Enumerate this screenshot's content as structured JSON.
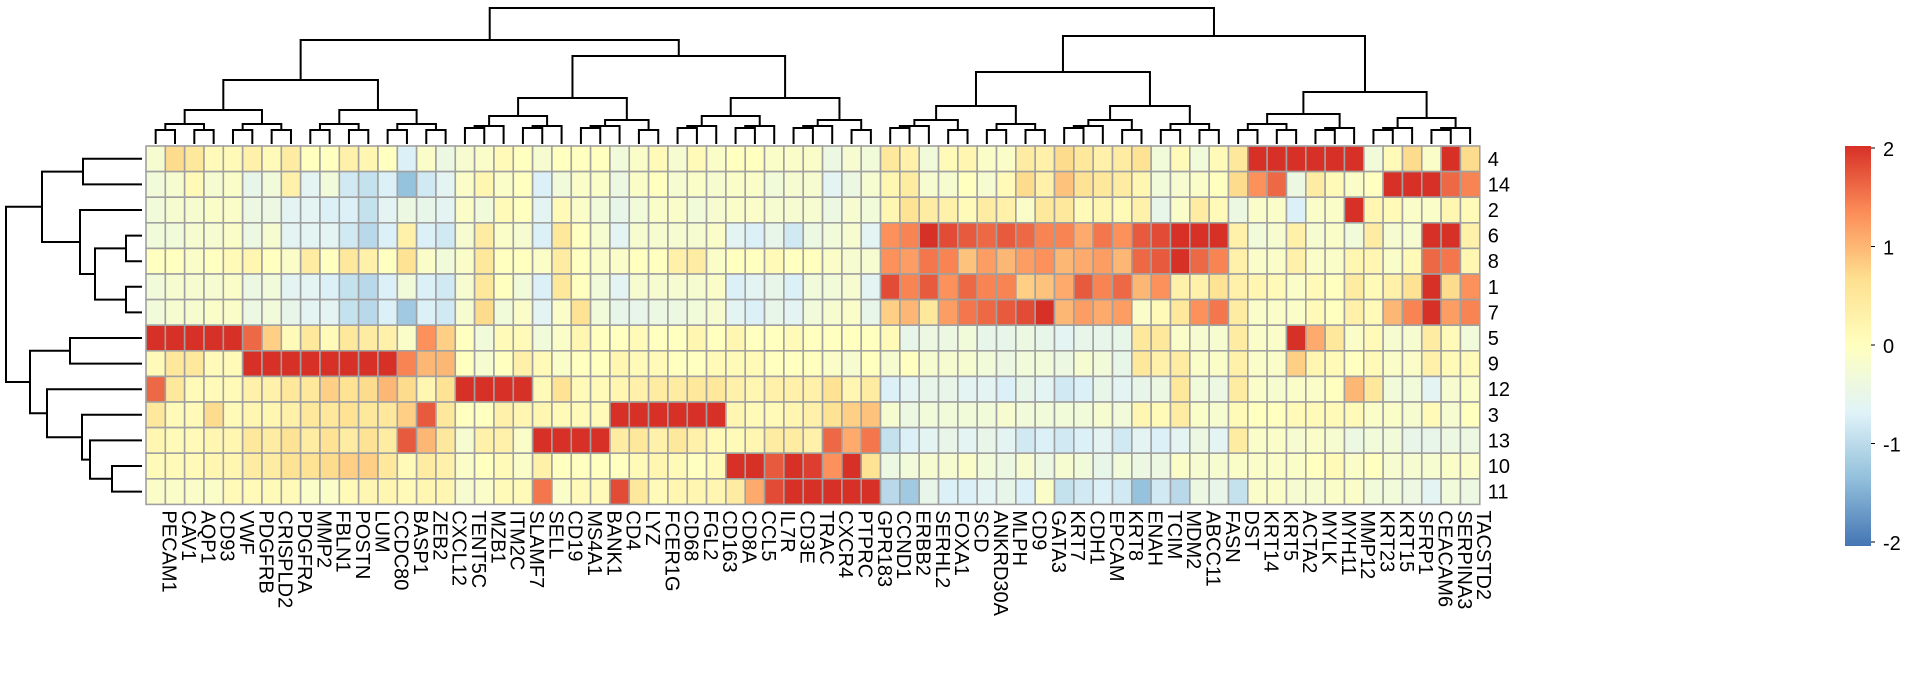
{
  "chart_data": {
    "type": "heatmap",
    "title": "",
    "xlabel": "",
    "ylabel": "",
    "columns": [
      "PECAM1",
      "CAV1",
      "AQP1",
      "CD93",
      "VWF",
      "PDGFRB",
      "CRISPLD2",
      "PDGFRA",
      "MMP2",
      "FBLN1",
      "POSTN",
      "LUM",
      "CCDC80",
      "BASP1",
      "ZEB2",
      "CXCL12",
      "TENT5C",
      "MZB1",
      "ITM2C",
      "SLAMF7",
      "SELL",
      "CD19",
      "MS4A1",
      "BANK1",
      "CD4",
      "LYZ",
      "FCER1G",
      "CD68",
      "FGL2",
      "CD163",
      "CD8A",
      "CCL5",
      "IL7R",
      "CD3E",
      "TRAC",
      "CXCR4",
      "PTPRC",
      "GPR183",
      "CCND1",
      "ERBB2",
      "SERHL2",
      "FOXA1",
      "SCD",
      "ANKRD30A",
      "MLPH",
      "CD9",
      "GATA3",
      "KRT7",
      "CDH1",
      "EPCAM",
      "KRT8",
      "ENAH",
      "TCIM",
      "MDM2",
      "ABCC11",
      "FASN",
      "DST",
      "KRT14",
      "KRT5",
      "ACTA2",
      "MYLK",
      "MYH11",
      "MMP12",
      "KRT23",
      "KRT15",
      "SFRP1",
      "CEACAM6",
      "SERPINA3",
      "TACSTD2"
    ],
    "rows": [
      "4",
      "14",
      "2",
      "6",
      "8",
      "1",
      "7",
      "5",
      "9",
      "12",
      "3",
      "13",
      "10",
      "11"
    ],
    "values": [
      [
        -0.2,
        0.7,
        0.5,
        0.1,
        0.1,
        0.3,
        0.1,
        0.4,
        0.0,
        0.0,
        0.3,
        0.2,
        0.0,
        -0.7,
        -0.1,
        -0.4,
        -0.2,
        -0.1,
        0.1,
        0.0,
        -0.2,
        0.0,
        0.0,
        0.0,
        -0.3,
        -0.1,
        0.1,
        -0.2,
        0.1,
        -0.1,
        0.0,
        0.0,
        -0.1,
        -0.1,
        -0.1,
        -0.4,
        -0.2,
        -0.3,
        0.5,
        0.3,
        -0.3,
        0.1,
        0.2,
        -0.1,
        -0.1,
        0.4,
        0.3,
        0.7,
        0.5,
        0.3,
        0.4,
        0.6,
        -0.3,
        0.1,
        -0.3,
        0.1,
        0.5,
        2.0,
        2.0,
        2.0,
        2.0,
        2.0,
        2.0,
        -0.3,
        0.1,
        0.7,
        -0.1,
        2.0,
        0.7
      ],
      [
        -0.3,
        -0.2,
        0.1,
        -0.2,
        -0.1,
        -0.5,
        -0.3,
        0.3,
        -0.6,
        -0.3,
        -0.8,
        -0.9,
        -0.7,
        -1.3,
        -0.8,
        -0.6,
        -0.1,
        0.2,
        -0.1,
        0.0,
        -0.7,
        -0.3,
        -0.1,
        -0.1,
        -0.4,
        -0.1,
        0.0,
        -0.2,
        -0.1,
        -0.2,
        -0.1,
        -0.1,
        -0.3,
        -0.2,
        -0.2,
        -0.6,
        -0.4,
        -0.2,
        0.2,
        0.4,
        -0.2,
        -0.2,
        0.0,
        -0.2,
        0.1,
        0.7,
        0.3,
        0.9,
        0.6,
        0.5,
        0.4,
        0.2,
        -0.3,
        -0.2,
        -0.1,
        0.0,
        0.7,
        1.3,
        1.6,
        -0.4,
        0.4,
        0.1,
        -0.1,
        0.0,
        2.0,
        2.0,
        2.0,
        1.6,
        1.4
      ],
      [
        -0.3,
        -0.2,
        -0.2,
        -0.1,
        -0.1,
        -0.4,
        -0.4,
        -0.6,
        -0.6,
        -0.7,
        -0.7,
        -0.9,
        -0.6,
        -0.4,
        -0.5,
        -0.6,
        -0.1,
        -0.3,
        0.1,
        0.0,
        -0.6,
        0.1,
        -0.1,
        -0.3,
        -0.5,
        -0.3,
        -0.1,
        -0.1,
        -0.3,
        -0.2,
        -0.1,
        -0.1,
        -0.2,
        -0.2,
        -0.2,
        -0.4,
        -0.2,
        -0.3,
        0.2,
        0.6,
        0.4,
        0.3,
        0.1,
        0.4,
        0.3,
        -0.1,
        0.5,
        0.5,
        0.1,
        0.2,
        0.1,
        0.3,
        -0.5,
        -0.1,
        0.4,
        0.1,
        -0.4,
        -0.1,
        -0.1,
        -0.7,
        -0.1,
        -0.1,
        2.0,
        0.2,
        0.1,
        -0.1,
        -0.1,
        0.2,
        0.1
      ],
      [
        -0.3,
        -0.3,
        -0.2,
        -0.2,
        -0.1,
        -0.4,
        -0.2,
        -0.6,
        -0.6,
        -0.6,
        -0.8,
        -1.0,
        -0.7,
        0.3,
        -0.7,
        -0.8,
        -0.2,
        0.4,
        -0.1,
        -0.2,
        -0.7,
        0.5,
        0.0,
        -0.2,
        -0.6,
        -0.2,
        -0.2,
        -0.2,
        -0.2,
        -0.1,
        -0.6,
        -0.7,
        -0.5,
        -0.8,
        -0.4,
        -0.3,
        -0.2,
        -0.6,
        1.3,
        1.4,
        2.0,
        1.8,
        1.7,
        1.6,
        1.7,
        1.6,
        1.4,
        1.4,
        1.1,
        1.5,
        1.3,
        1.7,
        1.8,
        2.0,
        2.0,
        2.0,
        0.3,
        -0.3,
        -0.2,
        0.3,
        -0.2,
        -0.1,
        -0.3,
        0.4,
        -0.2,
        -0.2,
        2.0,
        2.0,
        0.3
      ],
      [
        0.0,
        0.0,
        -0.1,
        0.0,
        0.1,
        0.2,
        0.0,
        -0.1,
        0.4,
        0.0,
        0.5,
        0.3,
        0.0,
        0.6,
        -0.1,
        -0.3,
        -0.1,
        0.5,
        0.0,
        0.0,
        -0.1,
        0.4,
        0.0,
        -0.1,
        -0.1,
        0.0,
        0.0,
        0.3,
        0.4,
        -0.1,
        0.0,
        0.0,
        0.1,
        0.0,
        0.0,
        -0.1,
        -0.2,
        -0.2,
        1.3,
        1.2,
        1.5,
        1.4,
        0.9,
        1.2,
        1.0,
        1.2,
        1.3,
        1.0,
        1.1,
        1.2,
        1.0,
        1.6,
        1.7,
        2.0,
        1.6,
        1.4,
        0.3,
        -0.1,
        -0.1,
        0.3,
        -0.1,
        -0.1,
        0.2,
        0.2,
        -0.1,
        0.1,
        1.6,
        1.5,
        0.2
      ],
      [
        -0.3,
        -0.2,
        -0.2,
        -0.2,
        -0.1,
        -0.4,
        -0.3,
        -0.6,
        -0.6,
        -0.7,
        -0.9,
        -1.0,
        -0.7,
        -0.3,
        -0.7,
        -0.8,
        -0.2,
        0.5,
        0.0,
        -0.3,
        -0.7,
        0.5,
        0.0,
        -0.3,
        -0.6,
        -0.2,
        -0.2,
        -0.2,
        -0.2,
        -0.1,
        -0.7,
        -0.6,
        -0.5,
        -0.7,
        -0.3,
        -0.3,
        -0.2,
        -0.6,
        1.8,
        1.4,
        1.7,
        1.3,
        1.6,
        1.4,
        1.4,
        0.8,
        0.9,
        1.1,
        1.7,
        1.4,
        1.6,
        1.0,
        1.3,
        0.3,
        0.3,
        0.6,
        0.3,
        0.2,
        0.1,
        -0.1,
        0.1,
        0.0,
        0.4,
        0.1,
        0.3,
        0.6,
        2.0,
        0.7,
        1.3
      ],
      [
        -0.3,
        -0.2,
        -0.2,
        -0.1,
        -0.1,
        -0.4,
        -0.3,
        -0.5,
        -0.6,
        -0.6,
        -0.9,
        -1.0,
        -0.7,
        -1.2,
        -0.7,
        -0.8,
        -0.2,
        0.7,
        -0.3,
        -0.1,
        -0.6,
        -0.1,
        0.6,
        -0.3,
        -0.5,
        -0.5,
        -0.4,
        -0.4,
        -0.3,
        -0.2,
        -0.6,
        -0.7,
        -0.5,
        -0.6,
        -0.3,
        -0.2,
        -0.1,
        -0.5,
        0.8,
        1.0,
        0.5,
        1.2,
        1.5,
        1.6,
        1.7,
        1.8,
        2.0,
        1.0,
        1.2,
        1.1,
        1.2,
        -0.1,
        0.1,
        0.5,
        1.3,
        1.5,
        0.4,
        -0.1,
        -0.1,
        -0.1,
        0.1,
        0.0,
        0.3,
        0.1,
        1.0,
        1.4,
        2.0,
        1.2,
        1.4
      ],
      [
        2.0,
        2.0,
        2.0,
        2.0,
        2.0,
        1.6,
        0.8,
        0.1,
        0.5,
        0.1,
        0.5,
        0.4,
        0.3,
        -0.1,
        1.3,
        0.8,
        0.0,
        -0.3,
        0.1,
        0.1,
        -0.3,
        -0.1,
        0.2,
        0.0,
        0.0,
        0.1,
        0.0,
        0.0,
        0.2,
        0.0,
        0.2,
        0.0,
        0.0,
        0.1,
        0.0,
        0.0,
        0.0,
        0.0,
        0.1,
        -0.5,
        -0.4,
        -0.4,
        -0.3,
        -0.5,
        -0.5,
        -0.4,
        -0.5,
        -0.6,
        -0.5,
        -0.5,
        -0.5,
        0.5,
        0.5,
        -0.1,
        -0.2,
        -0.2,
        0.4,
        -0.1,
        -0.1,
        2.0,
        1.1,
        0.5,
        -0.1,
        0.1,
        -0.2,
        -0.2,
        0.4,
        0.1,
        -0.3
      ],
      [
        0.1,
        0.5,
        0.5,
        0.1,
        0.1,
        2.0,
        2.0,
        2.0,
        2.0,
        2.0,
        2.0,
        2.0,
        2.0,
        1.4,
        1.0,
        1.0,
        0.0,
        -0.2,
        0.0,
        0.3,
        0.1,
        -0.1,
        0.0,
        0.0,
        0.2,
        0.1,
        0.1,
        0.0,
        0.0,
        0.1,
        0.1,
        0.1,
        0.0,
        0.0,
        0.0,
        -0.1,
        -0.2,
        0.0,
        -0.2,
        0.0,
        -0.2,
        -0.2,
        -0.2,
        -0.3,
        -0.4,
        -0.3,
        -0.3,
        -0.4,
        -0.2,
        -0.3,
        -0.5,
        0.5,
        0.3,
        0.4,
        -0.1,
        -0.1,
        0.3,
        -0.1,
        -0.1,
        0.8,
        0.2,
        0.1,
        0.0,
        0.1,
        -0.1,
        -0.1,
        0.3,
        0.1,
        0.1
      ],
      [
        1.6,
        0.5,
        0.1,
        0.1,
        0.1,
        0.3,
        0.3,
        0.5,
        0.5,
        0.8,
        0.6,
        0.7,
        1.0,
        0.7,
        0.2,
        0.6,
        2.0,
        2.0,
        2.0,
        2.0,
        0.1,
        0.6,
        0.1,
        0.1,
        0.2,
        0.3,
        0.4,
        0.4,
        0.5,
        0.5,
        0.3,
        0.2,
        0.3,
        0.3,
        0.3,
        0.6,
        0.2,
        0.4,
        -0.7,
        -0.6,
        -0.5,
        -0.5,
        -0.6,
        -0.6,
        -0.7,
        -0.5,
        -0.6,
        -0.8,
        -0.7,
        -0.5,
        -0.6,
        -0.5,
        -0.4,
        0.5,
        -0.3,
        -0.4,
        0.4,
        -0.1,
        -0.2,
        -0.1,
        -0.1,
        0.0,
        1.0,
        0.5,
        -0.3,
        -0.3,
        -0.6,
        -0.2,
        -0.1
      ],
      [
        0.5,
        0.1,
        0.1,
        0.7,
        0.1,
        0.2,
        0.2,
        0.3,
        0.5,
        0.5,
        0.6,
        0.5,
        0.5,
        0.8,
        1.7,
        0.5,
        0.0,
        0.0,
        0.3,
        0.2,
        0.2,
        0.1,
        0.1,
        0.1,
        2.0,
        2.0,
        2.0,
        2.0,
        2.0,
        2.0,
        0.2,
        0.1,
        0.1,
        0.2,
        0.3,
        0.6,
        0.8,
        0.9,
        -0.2,
        -0.4,
        -0.3,
        -0.3,
        -0.3,
        -0.3,
        -0.2,
        -0.3,
        -0.3,
        -0.3,
        -0.3,
        -0.2,
        -0.3,
        0.2,
        0.1,
        0.4,
        -0.1,
        -0.2,
        0.1,
        0.0,
        0.0,
        0.1,
        0.1,
        0.1,
        0.1,
        -0.1,
        -0.1,
        -0.2,
        0.1,
        -0.2,
        0.0
      ],
      [
        0.2,
        0.1,
        0.1,
        0.2,
        0.2,
        0.5,
        0.4,
        0.6,
        0.4,
        0.6,
        0.4,
        0.6,
        0.4,
        1.7,
        1.0,
        0.5,
        -0.2,
        0.3,
        0.3,
        -0.1,
        2.0,
        2.0,
        2.0,
        2.0,
        0.4,
        0.5,
        0.3,
        0.5,
        0.3,
        0.1,
        0.1,
        0.2,
        0.4,
        0.4,
        0.3,
        1.6,
        1.1,
        1.5,
        -0.9,
        -0.7,
        -0.6,
        -0.5,
        -0.6,
        -0.5,
        -0.6,
        -0.8,
        -0.7,
        -0.8,
        -0.7,
        -0.6,
        -0.8,
        -0.6,
        -0.7,
        -0.6,
        -0.4,
        -0.6,
        0.4,
        -0.1,
        -0.1,
        -0.2,
        -0.1,
        -0.2,
        -0.4,
        -0.3,
        -0.3,
        -0.5,
        -0.5,
        -0.4,
        -0.4
      ],
      [
        0.1,
        0.1,
        0.1,
        0.2,
        0.2,
        0.4,
        0.4,
        0.6,
        0.6,
        0.7,
        0.8,
        0.8,
        0.5,
        0.1,
        0.4,
        0.3,
        -0.1,
        0.0,
        0.1,
        -0.1,
        0.3,
        0.0,
        0.0,
        0.0,
        0.0,
        0.1,
        0.2,
        0.1,
        0.0,
        0.1,
        2.0,
        2.0,
        1.7,
        2.0,
        1.9,
        1.3,
        2.0,
        0.6,
        -0.4,
        -0.3,
        -0.2,
        -0.2,
        -0.1,
        -0.3,
        -0.4,
        -0.2,
        -0.4,
        -0.2,
        -0.3,
        -0.5,
        -0.3,
        -0.4,
        -0.4,
        -0.1,
        -0.2,
        -0.2,
        -0.1,
        -0.1,
        -0.1,
        -0.1,
        0.0,
        0.1,
        -0.1,
        0.0,
        -0.2,
        -0.2,
        -0.2,
        -0.1,
        -0.1
      ],
      [
        -0.1,
        -0.1,
        -0.1,
        -0.1,
        0.1,
        0.1,
        0.1,
        0.1,
        -0.1,
        -0.1,
        0.1,
        0.2,
        0.2,
        0.1,
        0.2,
        0.2,
        -0.2,
        -0.1,
        0.1,
        0.1,
        1.5,
        -0.1,
        0.1,
        0.1,
        1.8,
        0.5,
        0.1,
        0.2,
        0.2,
        0.2,
        0.4,
        1.1,
        1.8,
        2.0,
        2.0,
        2.0,
        2.0,
        2.0,
        -1.0,
        -1.2,
        -0.5,
        -0.7,
        -0.7,
        -0.6,
        -0.5,
        -0.7,
        -0.1,
        -0.9,
        -0.8,
        -0.7,
        -0.8,
        -1.3,
        -0.8,
        -1.0,
        -0.4,
        -0.5,
        -0.9,
        -0.1,
        -0.1,
        -0.2,
        -0.2,
        -0.1,
        -0.1,
        -0.3,
        -0.3,
        -0.4,
        -0.6,
        -0.3,
        -0.4
      ]
    ],
    "color_scale": {
      "min": -2,
      "max": 2,
      "stops": [
        "#4575b4",
        "#91bfdb",
        "#e0f3f8",
        "#ffffbf",
        "#fee090",
        "#fc8d59",
        "#d73027"
      ],
      "legend_ticks": [
        "2",
        "1",
        "0",
        "-1",
        "-2"
      ],
      "legend_position": "right"
    },
    "cell_border_color": "#a0a0a0",
    "column_dendrogram": "top",
    "row_dendrogram": "left"
  }
}
